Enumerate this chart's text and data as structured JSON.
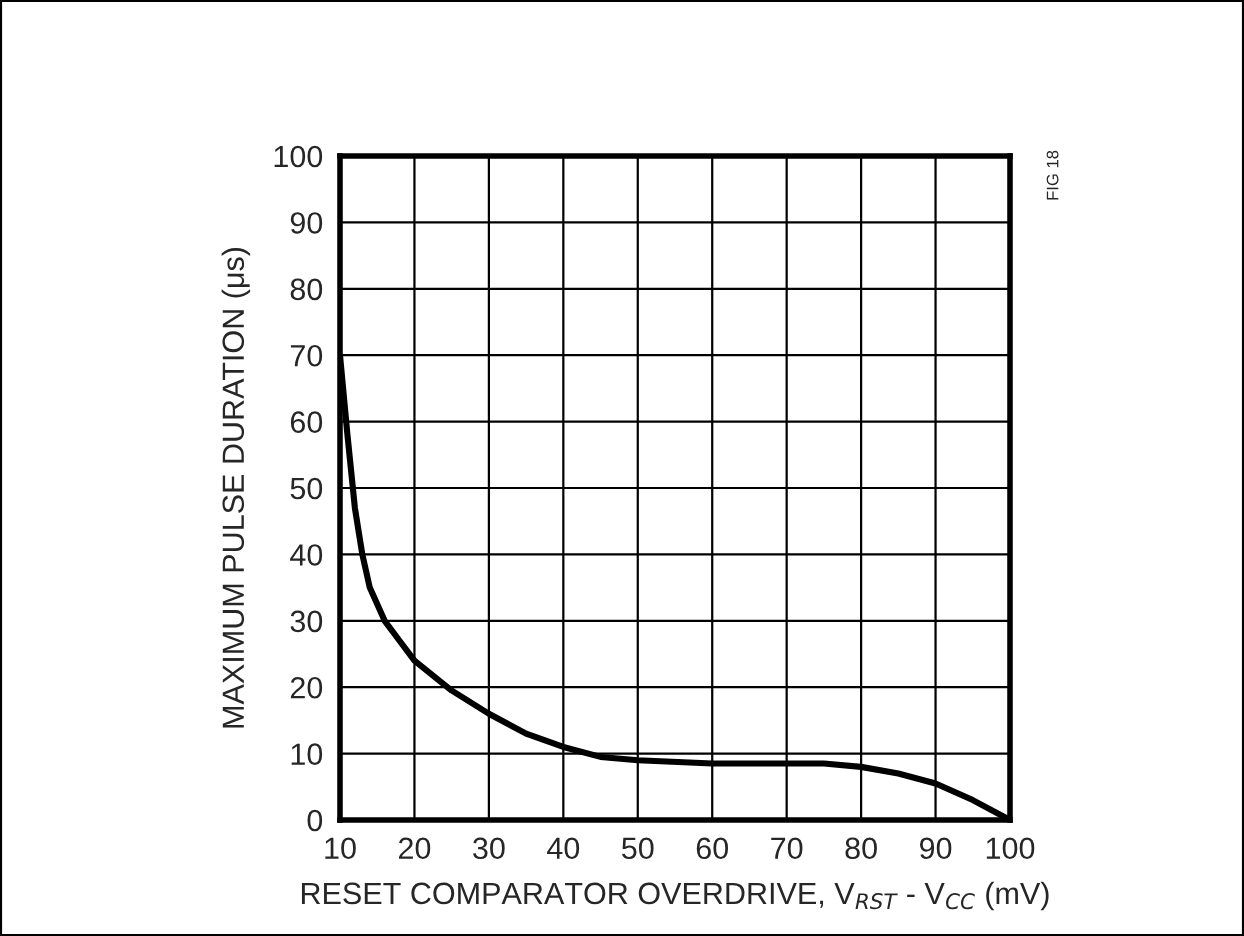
{
  "chart_data": {
    "type": "line",
    "xlabel": "RESET COMPARATOR OVERDRIVE, V$_{RST}$ - V$_{CC}$ (mV)",
    "ylabel": "MAXIMUM PULSE DURATION (μs)",
    "annotations": [
      "FIG 18"
    ],
    "x": [
      10,
      11,
      12,
      13,
      14,
      16,
      18,
      20,
      25,
      30,
      35,
      40,
      45,
      50,
      60,
      70,
      75,
      80,
      85,
      90,
      95,
      100
    ],
    "series": [
      {
        "color": "#000000",
        "values": [
          70,
          58,
          47,
          40,
          35,
          30,
          27,
          24,
          19.5,
          16,
          13,
          11,
          9.5,
          9,
          8.5,
          8.5,
          8.5,
          8,
          7,
          5.5,
          3,
          0
        ]
      }
    ],
    "xlim": [
      10,
      100
    ],
    "xticks": [
      10,
      20,
      30,
      40,
      50,
      60,
      70,
      80,
      90,
      100
    ],
    "ylim": [
      0,
      100
    ],
    "yticks": [
      0,
      10,
      20,
      30,
      40,
      50,
      60,
      70,
      80,
      90,
      100
    ],
    "grid": true,
    "marker": "none",
    "line_style": "solid",
    "legend": false
  }
}
